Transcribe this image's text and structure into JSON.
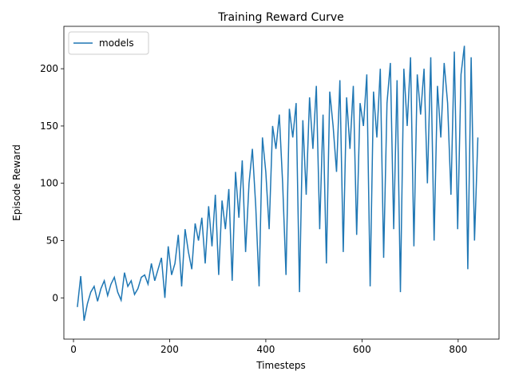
{
  "chart_data": {
    "type": "line",
    "title": "Training Reward Curve",
    "xlabel": "Timesteps",
    "ylabel": "Episode Reward",
    "x": [
      8,
      15,
      22,
      29,
      36,
      43,
      50,
      57,
      64,
      71,
      78,
      85,
      92,
      99,
      106,
      113,
      120,
      127,
      134,
      141,
      148,
      155,
      162,
      169,
      176,
      183,
      190,
      197,
      204,
      211,
      218,
      225,
      232,
      239,
      246,
      253,
      260,
      267,
      274,
      281,
      288,
      295,
      302,
      309,
      316,
      323,
      330,
      337,
      344,
      351,
      358,
      365,
      372,
      379,
      386,
      393,
      400,
      407,
      414,
      421,
      428,
      435,
      442,
      449,
      456,
      463,
      470,
      477,
      484,
      491,
      498,
      505,
      512,
      519,
      526,
      533,
      540,
      547,
      554,
      561,
      568,
      575,
      582,
      589,
      596,
      603,
      610,
      617,
      624,
      631,
      638,
      645,
      652,
      659,
      666,
      673,
      680,
      687,
      694,
      701,
      708,
      715,
      722,
      729,
      736,
      743,
      750,
      757,
      764,
      771,
      778,
      785,
      792,
      799,
      806,
      813,
      820,
      827,
      834,
      841
    ],
    "series": [
      {
        "name": "models",
        "color": "#1f77b4",
        "values": [
          -8,
          19,
          -20,
          -5,
          5,
          10,
          -3,
          8,
          15,
          2,
          12,
          18,
          5,
          -2,
          22,
          10,
          15,
          3,
          8,
          18,
          20,
          12,
          30,
          15,
          25,
          35,
          0,
          45,
          20,
          30,
          55,
          10,
          60,
          40,
          25,
          65,
          50,
          70,
          30,
          80,
          45,
          90,
          20,
          85,
          60,
          95,
          15,
          110,
          70,
          120,
          40,
          100,
          130,
          80,
          10,
          140,
          110,
          60,
          150,
          130,
          160,
          100,
          20,
          165,
          140,
          170,
          5,
          155,
          90,
          175,
          130,
          185,
          60,
          160,
          30,
          180,
          150,
          110,
          190,
          40,
          175,
          130,
          185,
          55,
          170,
          150,
          195,
          10,
          180,
          140,
          200,
          35,
          170,
          205,
          60,
          190,
          5,
          200,
          150,
          210,
          45,
          195,
          160,
          200,
          100,
          210,
          50,
          185,
          140,
          205,
          170,
          90,
          215,
          60,
          195,
          220,
          25,
          210,
          50,
          140
        ]
      }
    ],
    "xlim": [
      -20,
      885
    ],
    "xticks": [
      0,
      200,
      400,
      600,
      800
    ],
    "ylim": [
      -36,
      237
    ],
    "yticks": [
      0,
      50,
      100,
      150,
      200
    ],
    "legend": "upper left"
  }
}
